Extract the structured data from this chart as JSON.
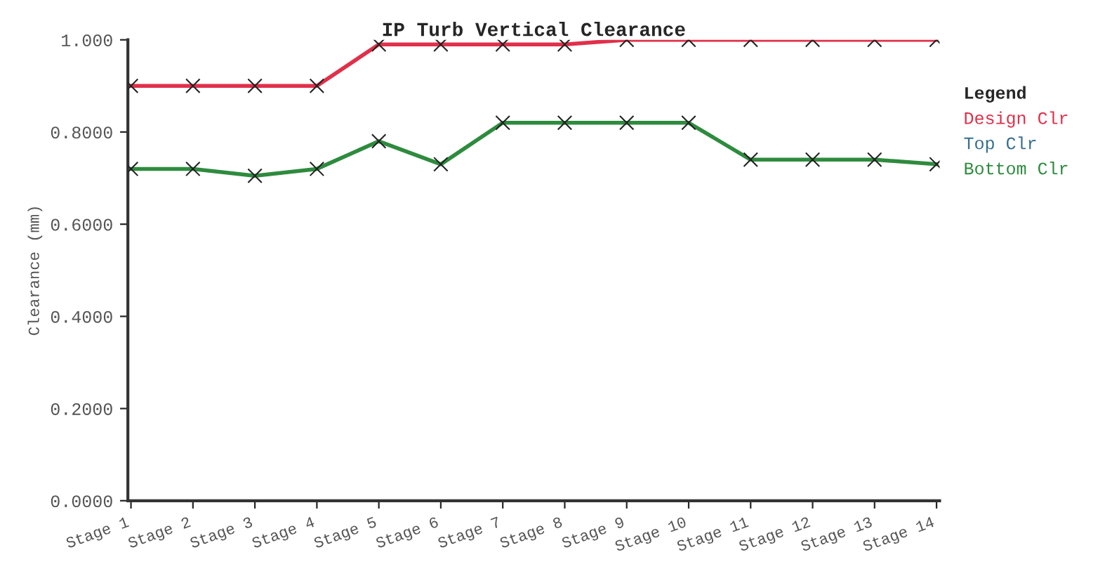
{
  "chart_data": {
    "type": "line",
    "title": "IP Turb Vertical Clearance",
    "ylabel": "Clearance (mm)",
    "legend_title": "Legend",
    "categories": [
      "Stage 1",
      "Stage 2",
      "Stage 3",
      "Stage 4",
      "Stage 5",
      "Stage 6",
      "Stage 7",
      "Stage 8",
      "Stage 9",
      "Stage 10",
      "Stage 11",
      "Stage 12",
      "Stage 13",
      "Stage 14"
    ],
    "series": [
      {
        "name": "Design Clr",
        "color": "#e0304a",
        "values": [
          0.9,
          0.9,
          0.9,
          0.9,
          0.99,
          0.99,
          0.99,
          0.99,
          1.0,
          1.0,
          1.0,
          1.0,
          1.0,
          1.0
        ]
      },
      {
        "name": "Top Clr",
        "color": "#3a6f8f",
        "values": [
          null,
          null,
          null,
          null,
          null,
          null,
          null,
          null,
          null,
          null,
          null,
          null,
          null,
          null
        ]
      },
      {
        "name": "Bottom Clr",
        "color": "#2e8b3e",
        "values": [
          0.72,
          0.72,
          0.705,
          0.72,
          0.78,
          0.73,
          0.82,
          0.82,
          0.82,
          0.82,
          0.74,
          0.74,
          0.74,
          0.73
        ]
      }
    ],
    "ylim": [
      0,
      1.0
    ],
    "yticks": [
      {
        "value": 0,
        "label": "0.0000"
      },
      {
        "value": 0.2,
        "label": "0.2000"
      },
      {
        "value": 0.4,
        "label": "0.4000"
      },
      {
        "value": 0.6,
        "label": "0.6000"
      },
      {
        "value": 0.8,
        "label": "0.8000"
      },
      {
        "value": 1.0,
        "label": "1.000"
      }
    ],
    "marker": "cross",
    "line_style": "solid",
    "grid": false,
    "legend": "right"
  }
}
